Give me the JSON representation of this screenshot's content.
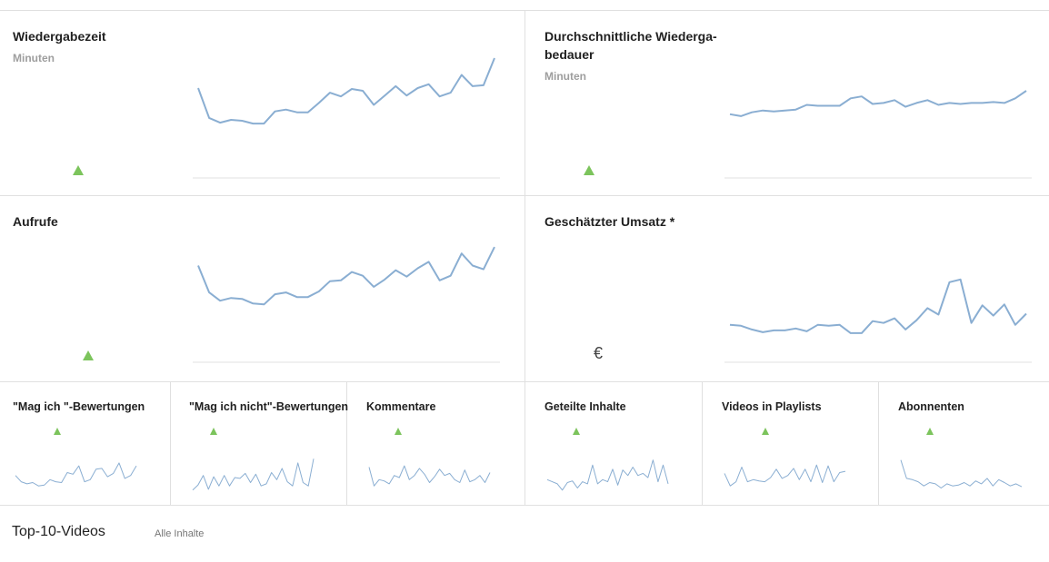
{
  "colors": {
    "line": "#8aaed2",
    "up": "#7cc45c",
    "divider": "#e0e0e0"
  },
  "big_cards": [
    {
      "title": "Wiedergabezeit",
      "subtitle": "Minuten",
      "indicator": "up-triangle",
      "series": [
        68,
        36,
        31,
        34,
        33,
        30,
        30,
        43,
        45,
        42,
        42,
        52,
        63,
        59,
        67,
        65,
        50,
        60,
        70,
        60,
        68,
        72,
        59,
        63,
        82,
        70,
        71,
        100
      ]
    },
    {
      "title": "Durchschnittliche Wiederga-bedauer",
      "subtitle": "Minuten",
      "indicator": "up-triangle",
      "series": [
        40,
        38,
        42,
        44,
        43,
        44,
        45,
        50,
        49,
        49,
        49,
        57,
        59,
        51,
        52,
        55,
        48,
        52,
        55,
        50,
        52,
        51,
        52,
        52,
        53,
        52,
        57,
        65
      ]
    },
    {
      "title": "Aufrufe",
      "subtitle": "",
      "indicator": "up-triangle",
      "series": [
        76,
        47,
        38,
        41,
        40,
        35,
        34,
        45,
        47,
        42,
        42,
        48,
        59,
        60,
        69,
        65,
        53,
        61,
        71,
        64,
        73,
        80,
        60,
        65,
        89,
        76,
        72,
        96
      ]
    },
    {
      "title": "Geschätzter Umsatz *",
      "subtitle": "",
      "indicator": "€",
      "series": [
        12,
        11,
        7,
        4,
        6,
        6,
        8,
        5,
        12,
        11,
        12,
        3,
        3,
        16,
        14,
        19,
        7,
        17,
        30,
        23,
        58,
        61,
        14,
        33,
        22,
        34,
        12,
        24
      ]
    }
  ],
  "small_cards": [
    {
      "title": "\"Mag ich \"-Bewertungen",
      "series": [
        55,
        40,
        35,
        38,
        30,
        32,
        45,
        40,
        38,
        62,
        58,
        78,
        40,
        45,
        70,
        72,
        52,
        60,
        85,
        48,
        55,
        78
      ]
    },
    {
      "title": "\"Mag ich nicht\"-Bewertungen",
      "series": [
        20,
        32,
        55,
        22,
        52,
        30,
        55,
        30,
        50,
        48,
        60,
        38,
        58,
        30,
        35,
        62,
        45,
        72,
        40,
        30,
        85,
        38,
        30,
        95
      ]
    },
    {
      "title": "Kommentare",
      "series": [
        75,
        30,
        45,
        42,
        35,
        55,
        50,
        78,
        45,
        55,
        72,
        58,
        38,
        52,
        70,
        55,
        60,
        45,
        38,
        68,
        40,
        45,
        55,
        38,
        62
      ]
    },
    {
      "title": "Geteilte Inhalte",
      "series": [
        45,
        40,
        35,
        20,
        38,
        42,
        25,
        40,
        35,
        80,
        35,
        45,
        40,
        70,
        32,
        68,
        55,
        75,
        55,
        60,
        50,
        92,
        40,
        80,
        35
      ]
    },
    {
      "title": "Videos in Playlists",
      "series": [
        60,
        30,
        40,
        75,
        40,
        45,
        42,
        40,
        50,
        70,
        48,
        55,
        72,
        45,
        70,
        40,
        80,
        38,
        78,
        40,
        62,
        65
      ]
    },
    {
      "title": "Abonnenten",
      "series": [
        92,
        48,
        45,
        40,
        30,
        38,
        35,
        25,
        35,
        30,
        32,
        38,
        30,
        42,
        35,
        48,
        30,
        45,
        38,
        30,
        35,
        28
      ]
    }
  ],
  "footer": {
    "top10_label": "Top-10-Videos",
    "all_content_label": "Alle Inhalte"
  }
}
